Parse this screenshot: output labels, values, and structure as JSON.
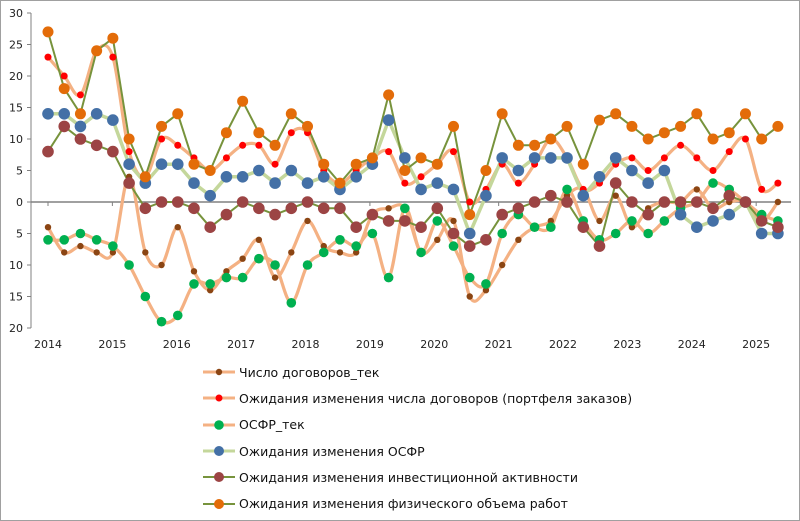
{
  "chart_data": {
    "type": "line",
    "title": "",
    "xlabel": "",
    "ylabel": "",
    "ylim": [
      -20,
      30
    ],
    "y_ticks": [
      30,
      25,
      20,
      15,
      10,
      5,
      0,
      -5,
      -10,
      -15,
      -20
    ],
    "y_tick_labels": [
      "30",
      "25",
      "20",
      "15",
      "10",
      "5",
      "0",
      "5",
      "10",
      "15",
      "20"
    ],
    "x_tick_labels": [
      "2014",
      "2015",
      "2016",
      "2017",
      "2018",
      "2019",
      "2020",
      "2021",
      "2022",
      "2023",
      "2024",
      "2025"
    ],
    "x_note": "quarterly points, 2014 Q1 – 2025 Q2",
    "legend_position": "bottom",
    "series": [
      {
        "name": "Число договоров_тек",
        "line_color": "#f4b183",
        "marker_color": "#8b4513",
        "style": "smooth",
        "values": [
          -4,
          -8,
          -7,
          -8,
          -8,
          4,
          -8,
          -10,
          -4,
          -11,
          -14,
          -11,
          -9,
          -6,
          -12,
          -8,
          -3,
          -7,
          -8,
          -8,
          -2,
          -1,
          -1,
          -8,
          -6,
          -3,
          -15,
          -14,
          -10,
          -6,
          -4,
          -3,
          1,
          2,
          -3,
          1,
          -4,
          -1,
          0,
          0,
          2,
          -1,
          0,
          0,
          -3,
          0
        ]
      },
      {
        "name": "Ожидания изменения числа договоров (портфеля заказов)",
        "line_color": "#f4b183",
        "marker_color": "#ff0000",
        "style": "smooth",
        "values": [
          23,
          20,
          17,
          24,
          23,
          8,
          4,
          10,
          9,
          7,
          5,
          7,
          9,
          9,
          6,
          11,
          11,
          5,
          3,
          5,
          7,
          8,
          3,
          4,
          6,
          8,
          0,
          2,
          6,
          3,
          6,
          10,
          7,
          2,
          3,
          6,
          7,
          5,
          7,
          9,
          7,
          5,
          8,
          10,
          2,
          3
        ]
      },
      {
        "name": "ОСФР_тек",
        "line_color": "#f4b183",
        "marker_color": "#00b050",
        "style": "smooth",
        "values": [
          -6,
          -6,
          -5,
          -6,
          -7,
          -10,
          -15,
          -19,
          -18,
          -13,
          -13,
          -12,
          -12,
          -9,
          -10,
          -16,
          -10,
          -8,
          -6,
          -7,
          -5,
          -12,
          -1,
          -8,
          -3,
          -7,
          -12,
          -13,
          -5,
          -2,
          -4,
          -4,
          2,
          -3,
          -6,
          -5,
          -3,
          -5,
          -3,
          -1,
          0,
          3,
          2,
          0,
          -2,
          -3
        ]
      },
      {
        "name": "Ожидания изменения ОСФР",
        "line_color": "#c4d79b",
        "marker_color": "#4470a6",
        "style": "straight-thick",
        "values": [
          14,
          14,
          12,
          14,
          13,
          6,
          3,
          6,
          6,
          3,
          1,
          4,
          4,
          5,
          3,
          5,
          3,
          4,
          2,
          4,
          6,
          13,
          7,
          2,
          3,
          2,
          -5,
          1,
          7,
          5,
          7,
          7,
          7,
          1,
          4,
          7,
          5,
          3,
          5,
          -2,
          -4,
          -3,
          -2,
          0,
          -5,
          -5
        ]
      },
      {
        "name": "Ожидания изменения инвестиционной активности",
        "line_color": "#77933c",
        "marker_color": "#9c4444",
        "style": "straight",
        "values": [
          8,
          12,
          10,
          9,
          8,
          3,
          -1,
          0,
          0,
          -1,
          -4,
          -2,
          0,
          -1,
          -2,
          -1,
          0,
          -1,
          -1,
          -4,
          -2,
          -3,
          -3,
          -4,
          -1,
          -5,
          -7,
          -6,
          -2,
          -1,
          0,
          1,
          0,
          -4,
          -7,
          3,
          0,
          -2,
          0,
          0,
          0,
          -1,
          1,
          0,
          -3,
          -4
        ]
      },
      {
        "name": "Ожидания изменения физического объема работ",
        "line_color": "#77933c",
        "marker_color": "#e36c09",
        "style": "straight",
        "values": [
          27,
          18,
          14,
          24,
          26,
          10,
          4,
          12,
          14,
          6,
          5,
          11,
          16,
          11,
          9,
          14,
          12,
          6,
          3,
          6,
          7,
          17,
          5,
          7,
          6,
          12,
          -2,
          5,
          14,
          9,
          9,
          10,
          12,
          6,
          13,
          14,
          12,
          10,
          11,
          12,
          14,
          10,
          11,
          14,
          10,
          12
        ]
      }
    ]
  }
}
